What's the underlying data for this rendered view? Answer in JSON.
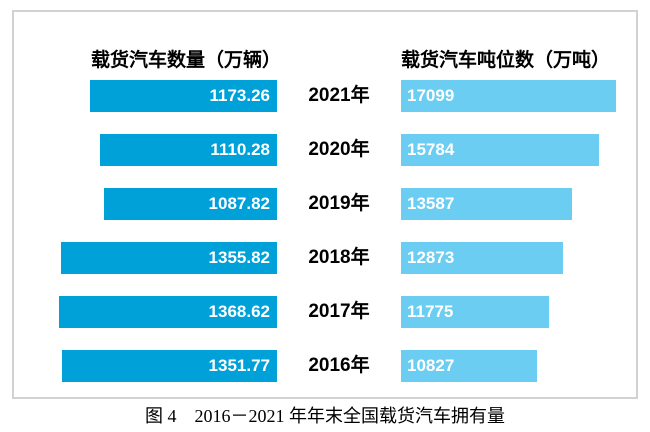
{
  "chart_data": {
    "type": "bar",
    "orientation": "horizontal-bidirectional",
    "categories": [
      "2021年",
      "2020年",
      "2019年",
      "2018年",
      "2017年",
      "2016年"
    ],
    "series": [
      {
        "name": "载货汽车数量（万辆）",
        "side": "left",
        "values": [
          1173.26,
          1110.28,
          1087.82,
          1355.82,
          1368.62,
          1351.77
        ],
        "value_decimals": 2,
        "color": "#00a0d9"
      },
      {
        "name": "载货汽车吨位数（万吨）",
        "side": "right",
        "values": [
          17099,
          15784,
          13587,
          12873,
          11775,
          10827
        ],
        "value_decimals": 0,
        "color": "#6bcdf2"
      }
    ],
    "caption": "图 4　2016－2021 年年末全国载货汽车拥有量",
    "legend_position": "column-titles-top",
    "grid": false,
    "value_labels": "inside-bars"
  },
  "colors": {
    "left_bar": "#00a0d9",
    "right_bar": "#6bcdf2",
    "value_text": "#ffffff",
    "box_border": "#d2d2d2",
    "text": "#000000",
    "background": "#ffffff"
  }
}
